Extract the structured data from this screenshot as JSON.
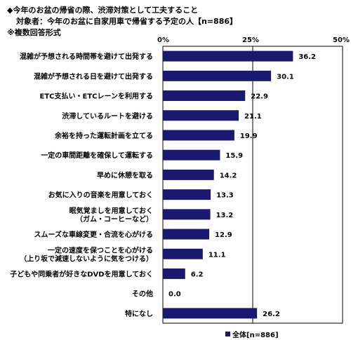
{
  "header": {
    "title": "◆今年のお盆の帰省の際、渋滞対策として工夫すること",
    "target": "対象者：今年のお盆に自家用車で帰省する予定の人【n=886】",
    "note": "※複数回答形式"
  },
  "chart_data": {
    "type": "bar",
    "orientation": "horizontal",
    "categories": [
      [
        "混雑が予想される時間帯を避けて出発する"
      ],
      [
        "混雑が予想される日を避けて出発する"
      ],
      [
        "ETC支払い・ETCレーンを利用する"
      ],
      [
        "渋滞しているルートを避ける"
      ],
      [
        "余裕を持った運転計画を立てる"
      ],
      [
        "一定の車間距離を確保して運転する"
      ],
      [
        "早めに休憩を取る"
      ],
      [
        "お気に入りの音楽を用意しておく"
      ],
      [
        "眠気覚ましを用意しておく",
        "（ガム・コーヒーなど）"
      ],
      [
        "スムーズな車線変更・合流を心がける"
      ],
      [
        "一定の速度を保つことを心がける",
        "（上り坂で減速しないように気をつける）"
      ],
      [
        "子どもや同乗者が好きなDVDを用意しておく"
      ],
      [
        "その他"
      ],
      [
        "特になし"
      ]
    ],
    "series": [
      {
        "name": "全体[n=886]",
        "color": "#191970",
        "values": [
          36.2,
          30.1,
          22.9,
          21.1,
          19.9,
          15.9,
          14.2,
          13.3,
          13.2,
          12.9,
          11.1,
          6.2,
          0.0,
          26.2
        ]
      }
    ],
    "value_labels": [
      "36.2",
      "30.1",
      "22.9",
      "21.1",
      "19.9",
      "15.9",
      "14.2",
      "13.3",
      "13.2",
      "12.9",
      "11.1",
      "6.2",
      "0.0",
      "26.2"
    ],
    "xlim": [
      0,
      50
    ],
    "x_ticks": [
      "0%",
      "25%",
      "50%"
    ],
    "grid": true,
    "legend_position": "bottom-right"
  }
}
